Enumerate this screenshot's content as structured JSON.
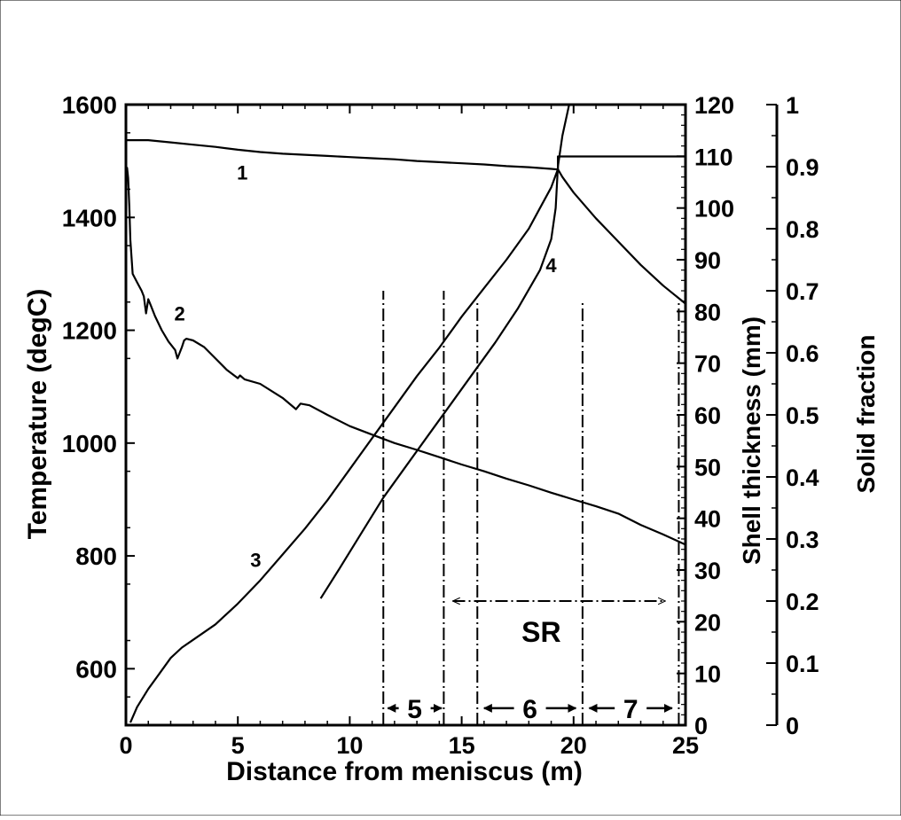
{
  "chart_data": {
    "type": "line",
    "x_axis": {
      "label": "Distance from meniscus (m)",
      "range": [
        0,
        25
      ],
      "ticks": [
        0,
        5,
        10,
        15,
        20,
        25
      ],
      "tick_labels": [
        "0",
        "5",
        "10",
        "15",
        "20",
        "25"
      ]
    },
    "y_axes": {
      "left": {
        "label": "Temperature (degC)",
        "range": [
          500,
          1600
        ],
        "ticks": [
          600,
          800,
          1000,
          1200,
          1400,
          1600
        ],
        "tick_labels": [
          "600",
          "800",
          "1000",
          "1200",
          "1400",
          "1600"
        ]
      },
      "right_inner": {
        "label": "Shell thickness (mm)",
        "range": [
          0,
          120
        ],
        "ticks": [
          0,
          10,
          20,
          30,
          40,
          50,
          60,
          70,
          80,
          90,
          100,
          110,
          120
        ],
        "tick_labels": [
          "0",
          "10",
          "20",
          "30",
          "40",
          "50",
          "60",
          "70",
          "80",
          "90",
          "100",
          "110",
          "120"
        ]
      },
      "right_outer": {
        "label": "Solid fraction",
        "range": [
          0,
          1
        ],
        "ticks": [
          0,
          0.1,
          0.2,
          0.3,
          0.4,
          0.5,
          0.6,
          0.7,
          0.8,
          0.9,
          1
        ],
        "tick_labels": [
          "0",
          "0.1",
          "0.2",
          "0.3",
          "0.4",
          "0.5",
          "0.6",
          "0.7",
          "0.8",
          "0.9",
          "1"
        ]
      }
    },
    "series": [
      {
        "name": "1",
        "axis": "left",
        "label_at": [
          5.2,
          1480
        ],
        "x": [
          0,
          1.0,
          2.0,
          3.0,
          4.0,
          5.0,
          6.0,
          7.0,
          8.0,
          9.0,
          10.0,
          11.0,
          12.0,
          13.0,
          14.0,
          15.0,
          16.0,
          17.0,
          18.0,
          19.0,
          19.3,
          19.3,
          25.0
        ],
        "y": [
          1537,
          1537,
          1533,
          1529,
          1525,
          1520,
          1516,
          1513,
          1511,
          1509,
          1507,
          1505,
          1503,
          1500,
          1498,
          1496,
          1494,
          1491,
          1489,
          1486,
          1485,
          1508,
          1508
        ]
      },
      {
        "name": "2",
        "axis": "left",
        "label_at": [
          2.4,
          1230
        ],
        "x": [
          0,
          0.05,
          0.1,
          0.15,
          0.2,
          0.3,
          0.5,
          0.7,
          0.8,
          0.9,
          1.0,
          1.1,
          1.3,
          1.6,
          1.9,
          2.2,
          2.3,
          2.5,
          2.6,
          2.7,
          3.0,
          3.5,
          4.0,
          4.5,
          5.0,
          5.1,
          5.3,
          6.0,
          7.0,
          7.6,
          7.8,
          8.2,
          9.0,
          10.0,
          11.0,
          12.0,
          13.0,
          14.0,
          15.0,
          16.0,
          17.0,
          18.0,
          19.0,
          20.0,
          21.0,
          22.0,
          23.0,
          24.0,
          25.0
        ],
        "y": [
          1460,
          1488,
          1470,
          1420,
          1360,
          1300,
          1285,
          1270,
          1260,
          1230,
          1255,
          1245,
          1225,
          1200,
          1180,
          1165,
          1150,
          1170,
          1182,
          1185,
          1182,
          1170,
          1150,
          1130,
          1115,
          1120,
          1113,
          1105,
          1080,
          1060,
          1070,
          1067,
          1050,
          1030,
          1015,
          1000,
          988,
          975,
          962,
          950,
          937,
          925,
          912,
          900,
          888,
          875,
          855,
          838,
          820
        ]
      },
      {
        "name": "3",
        "axis": "right_inner",
        "label_at": [
          5.8,
          32
        ],
        "x": [
          0.2,
          0.5,
          1.0,
          1.5,
          2.0,
          2.5,
          3.0,
          4.0,
          5.0,
          6.0,
          7.0,
          8.0,
          9.0,
          10.0,
          11.0,
          12.0,
          13.0,
          14.0,
          15.0,
          16.0,
          17.0,
          18.0,
          18.5,
          19.0,
          19.3,
          19.5,
          20.0,
          21.0,
          22.0,
          23.0,
          24.0,
          25.0
        ],
        "y": [
          0.5,
          3.5,
          7,
          10,
          13,
          15,
          16.5,
          19.5,
          23.5,
          28,
          33,
          38,
          43.5,
          49.5,
          55.5,
          61.5,
          67.5,
          73,
          79,
          84.5,
          90,
          96,
          100,
          104,
          107.5,
          106,
          103,
          98,
          93.5,
          89,
          85,
          81.5
        ]
      },
      {
        "name": "4",
        "axis": "right_inner",
        "label_at": [
          19.0,
          89
        ],
        "x": [
          8.7,
          9.5,
          10.5,
          11.5,
          12.5,
          13.5,
          14.5,
          15.5,
          16.5,
          17.5,
          18.5,
          19.0,
          19.2,
          19.3,
          19.5,
          19.8
        ],
        "y": [
          24.5,
          30,
          37,
          44,
          50,
          56,
          62,
          68,
          74,
          80.5,
          88,
          94,
          100,
          108,
          114,
          120
        ]
      }
    ],
    "vertical_lines": [
      {
        "x": 11.5,
        "ymin": 0,
        "ymax": 1270
      },
      {
        "x": 14.2,
        "ymin": 0,
        "ymax": 1270
      },
      {
        "x": 15.7,
        "ymin": 0,
        "ymax": 1250
      },
      {
        "x": 20.4,
        "ymin": 0,
        "ymax": 1250
      },
      {
        "x": 24.7,
        "ymin": 0,
        "ymax": 1250
      }
    ],
    "annotations": [
      {
        "text": "SR",
        "type": "span",
        "x_from": 14.6,
        "x_to": 24.1,
        "y": 720,
        "label_y": 665
      },
      {
        "text": "5",
        "type": "span",
        "x_from": 11.7,
        "x_to": 14.1,
        "y": 530
      },
      {
        "text": "6",
        "type": "span",
        "x_from": 16.0,
        "x_to": 20.1,
        "y": 530
      },
      {
        "text": "7",
        "type": "span",
        "x_from": 20.7,
        "x_to": 24.4,
        "y": 530
      }
    ],
    "grid": false,
    "legend": "none"
  }
}
